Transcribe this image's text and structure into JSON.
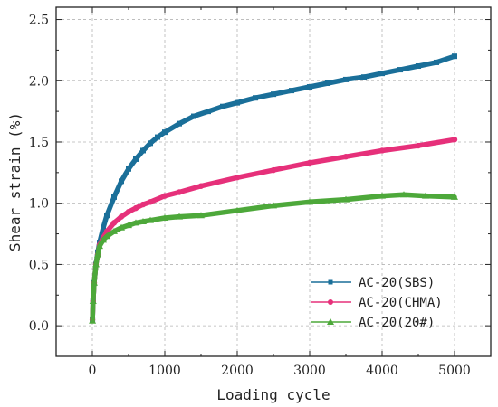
{
  "chart_data": {
    "type": "line",
    "title": "",
    "xlabel": "Loading cycle",
    "ylabel": "Shear strain (%)",
    "xlim": [
      -500,
      5500
    ],
    "ylim": [
      -0.25,
      2.6
    ],
    "xticks": [
      0,
      1000,
      2000,
      3000,
      4000,
      5000
    ],
    "yticks": [
      0.0,
      0.5,
      1.0,
      1.5,
      2.0,
      2.5
    ],
    "xtick_labels": [
      "0",
      "1000",
      "2000",
      "3000",
      "4000",
      "5000"
    ],
    "ytick_labels": [
      "0.0",
      "0.5",
      "1.0",
      "1.5",
      "2.0",
      "2.5"
    ],
    "grid": true,
    "legend_position": "bottom-right",
    "series": [
      {
        "name": "AC-20(SBS)",
        "color": "#1a6f99",
        "marker": "square",
        "x": [
          1,
          10,
          25,
          50,
          75,
          100,
          150,
          200,
          300,
          400,
          500,
          600,
          700,
          800,
          900,
          1000,
          1200,
          1400,
          1600,
          1800,
          2000,
          2250,
          2500,
          2750,
          3000,
          3250,
          3500,
          3750,
          4000,
          4250,
          4500,
          4750,
          5000
        ],
        "y": [
          0.05,
          0.2,
          0.35,
          0.5,
          0.6,
          0.68,
          0.8,
          0.9,
          1.05,
          1.18,
          1.28,
          1.36,
          1.43,
          1.49,
          1.54,
          1.58,
          1.65,
          1.71,
          1.75,
          1.79,
          1.82,
          1.86,
          1.89,
          1.92,
          1.95,
          1.98,
          2.01,
          2.03,
          2.06,
          2.09,
          2.12,
          2.15,
          2.2
        ]
      },
      {
        "name": "AC-20(CHMA)",
        "color": "#e6307a",
        "marker": "circle",
        "x": [
          1,
          10,
          25,
          50,
          75,
          100,
          150,
          200,
          300,
          400,
          500,
          600,
          700,
          800,
          1000,
          1200,
          1500,
          2000,
          2500,
          3000,
          3500,
          4000,
          4500,
          5000
        ],
        "y": [
          0.05,
          0.2,
          0.35,
          0.5,
          0.58,
          0.66,
          0.72,
          0.77,
          0.84,
          0.89,
          0.93,
          0.96,
          0.99,
          1.01,
          1.06,
          1.09,
          1.14,
          1.21,
          1.27,
          1.33,
          1.38,
          1.43,
          1.47,
          1.52
        ]
      },
      {
        "name": "AC-20(20#)",
        "color": "#4da83a",
        "marker": "triangle",
        "x": [
          1,
          10,
          25,
          50,
          75,
          100,
          150,
          200,
          300,
          400,
          500,
          600,
          700,
          800,
          1000,
          1200,
          1500,
          2000,
          2500,
          3000,
          3500,
          4000,
          4300,
          4600,
          5000
        ],
        "y": [
          0.04,
          0.2,
          0.35,
          0.5,
          0.58,
          0.65,
          0.7,
          0.73,
          0.77,
          0.8,
          0.82,
          0.84,
          0.85,
          0.86,
          0.88,
          0.89,
          0.9,
          0.94,
          0.98,
          1.01,
          1.03,
          1.06,
          1.07,
          1.06,
          1.05
        ]
      }
    ]
  }
}
